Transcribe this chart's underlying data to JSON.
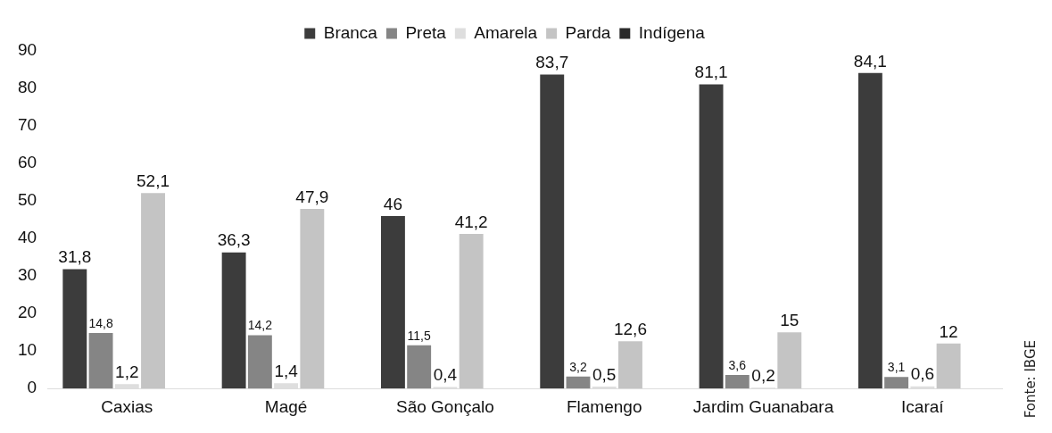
{
  "chart_data": {
    "type": "bar",
    "categories": [
      "Caxias",
      "Magé",
      "São Gonçalo",
      "Flamengo",
      "Jardim Guanabara",
      "Icaraí"
    ],
    "series": [
      {
        "name": "Branca",
        "color": "#3c3c3c",
        "values": [
          31.8,
          36.3,
          46,
          83.7,
          81.1,
          84.1
        ],
        "value_labels": [
          "31,8",
          "36,3",
          "46",
          "83,7",
          "81,1",
          "84,1"
        ]
      },
      {
        "name": "Preta",
        "color": "#858585",
        "values": [
          14.8,
          14.2,
          11.5,
          3.2,
          3.6,
          3.1
        ],
        "value_labels": [
          "14,8",
          "14,2",
          "11,5",
          "3,2",
          "3,6",
          "3,1"
        ]
      },
      {
        "name": "Amarela",
        "color": "#dedede",
        "values": [
          1.2,
          1.4,
          0.4,
          0.5,
          0.2,
          0.6
        ],
        "value_labels": [
          "1,2",
          "1,4",
          "0,4",
          "0,5",
          "0,2",
          "0,6"
        ]
      },
      {
        "name": "Parda",
        "color": "#c4c4c4",
        "values": [
          52.1,
          47.9,
          41.2,
          12.6,
          15,
          12
        ],
        "value_labels": [
          "52,1",
          "47,9",
          "41,2",
          "12,6",
          "15",
          "12"
        ]
      },
      {
        "name": "Indígena",
        "color": "#2a2a2a",
        "values": [
          0,
          0,
          0,
          0,
          0,
          0
        ]
      }
    ],
    "ylim": [
      0,
      90
    ],
    "yticks": [
      0,
      10,
      20,
      30,
      40,
      50,
      60,
      70,
      80,
      90
    ],
    "grid": false,
    "legend": "top",
    "annotations": [
      "Fonte: IBGE"
    ]
  }
}
